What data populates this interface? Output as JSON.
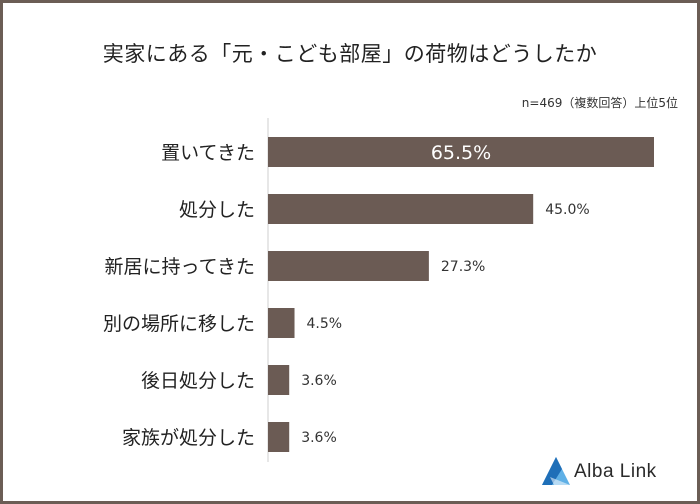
{
  "chart_data": {
    "type": "bar",
    "orientation": "horizontal",
    "title": "実家にある「元・こども部屋」の荷物はどうしたか",
    "note": "n=469（複数回答）上位5位",
    "categories": [
      "置いてきた",
      "処分した",
      "新居に持ってきた",
      "別の場所に移した",
      "後日処分した",
      "家族が処分した"
    ],
    "values": [
      65.5,
      45.0,
      27.3,
      4.5,
      3.6,
      3.6
    ],
    "value_labels": [
      "65.5%",
      "45.0%",
      "27.3%",
      "4.5%",
      "3.6%",
      "3.6%"
    ],
    "xlim": [
      0,
      65.5
    ],
    "bar_color": "#6b5b54",
    "inside_label_color": "#ffffff",
    "outside_label_color": "#333333",
    "axis_color": "#cfcfcf",
    "grid": false,
    "legend": "none"
  },
  "logo": {
    "text": "Alba Link",
    "colors": [
      "#1f6fb8",
      "#5fb0e6"
    ]
  },
  "frame_color": "#6b5d55"
}
